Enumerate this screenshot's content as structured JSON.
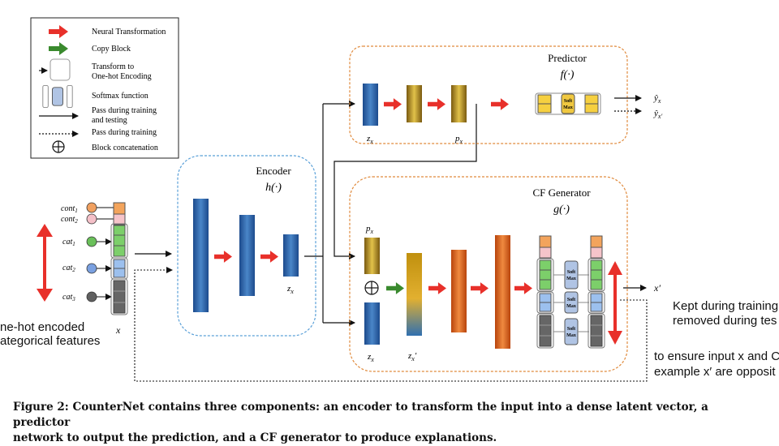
{
  "legend": {
    "neural": "Neural Transformation",
    "copy": "Copy Block",
    "onehot_1": "Transform to",
    "onehot_2": "One-hot Encoding",
    "softmax": "Softmax function",
    "pass_1": "Pass during training",
    "pass_2": "and testing",
    "pass_train": "Pass during training",
    "concat": "Block concatenation",
    "soft_a": "Soft",
    "soft_b": "Max"
  },
  "encoder": {
    "title": "Encoder",
    "func": "h(·)",
    "latent": "zx"
  },
  "predictor": {
    "title": "Predictor",
    "func": "f(·)",
    "latent": "zx",
    "px": "px",
    "y_hat": "ŷx",
    "y_hat_cf": "ŷx′"
  },
  "cf_generator": {
    "title": "CF Generator",
    "func": "g(·)",
    "px": "px",
    "zx": "zx",
    "zx_cf": "zx′",
    "x_cf": "x′"
  },
  "input": {
    "features": [
      "cont1",
      "cont2",
      "cat1",
      "cat2",
      "cat3"
    ],
    "x_label": "x",
    "onehot_label_1": "ne-hot encoded",
    "onehot_label_2": "ategorical features"
  },
  "side_notes": {
    "kept_1": "Kept during training",
    "kept_2": "removed during tes",
    "ensure_1": "to ensure input x and C",
    "ensure_2": "example x′ are opposit"
  },
  "caption": {
    "line1": "Figure 2: CounterNet contains three components: an encoder to transform the input into a dense latent vector, a predictor",
    "line2": "network to output the prediction, and a CF generator to produce explanations."
  },
  "colors": {
    "red_arrow": "#e8302a",
    "green_arrow": "#3a8a2e",
    "encoder_border": "#5aa0d8",
    "section_border": "#e08a3c",
    "blue_block": "#2a5fa8",
    "gold_block": "#a07a1a",
    "orange_block": "#d9621c"
  }
}
